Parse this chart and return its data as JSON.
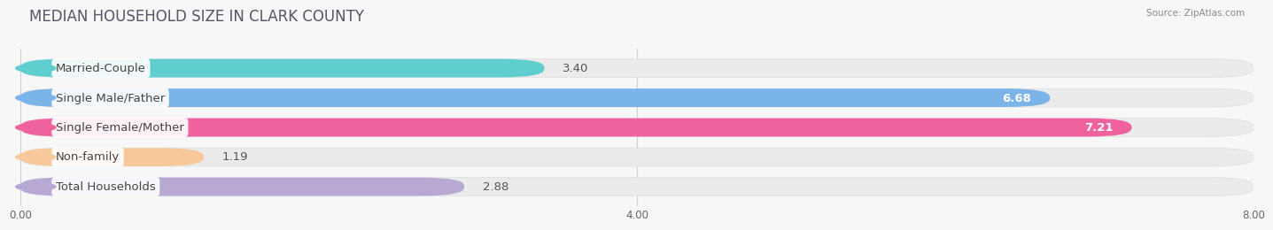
{
  "title": "MEDIAN HOUSEHOLD SIZE IN CLARK COUNTY",
  "source": "Source: ZipAtlas.com",
  "categories": [
    "Married-Couple",
    "Single Male/Father",
    "Single Female/Mother",
    "Non-family",
    "Total Households"
  ],
  "values": [
    3.4,
    6.68,
    7.21,
    1.19,
    2.88
  ],
  "bar_colors": [
    "#5ecece",
    "#7ab4e8",
    "#f0629e",
    "#f7c99a",
    "#b8a8d4"
  ],
  "bar_bg_colors": [
    "#ebebeb",
    "#ebebeb",
    "#ebebeb",
    "#ebebeb",
    "#ebebeb"
  ],
  "label_left_colors": [
    "#5ecece",
    "#7ab4e8",
    "#f0629e",
    "#f7c99a",
    "#b8a8d4"
  ],
  "value_inside": [
    false,
    true,
    true,
    false,
    false
  ],
  "xlim": [
    0,
    8.0
  ],
  "xticks": [
    0.0,
    4.0,
    8.0
  ],
  "xtick_labels": [
    "0.00",
    "4.00",
    "8.00"
  ],
  "title_fontsize": 12,
  "label_fontsize": 9.5,
  "value_fontsize": 9.5,
  "bar_height": 0.62,
  "background_color": "#f7f7f7"
}
